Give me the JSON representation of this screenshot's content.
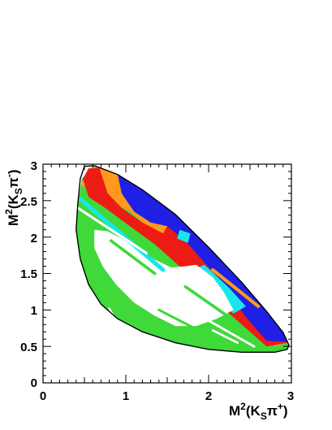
{
  "chart_data": {
    "type": "heatmap",
    "title": "",
    "xlabel": {
      "base": "M",
      "sup1": "2",
      "open": "(K",
      "sub": "S",
      "pi": "π",
      "sup2": "+",
      "close": ")"
    },
    "ylabel": {
      "base": "M",
      "sup1": "2",
      "open": "(K",
      "sub": "S",
      "pi": "π",
      "sup2": "-",
      "close": ")"
    },
    "xlim": [
      0,
      3
    ],
    "ylim": [
      0,
      3
    ],
    "x_ticks": [
      "0",
      "1",
      "2",
      "3"
    ],
    "y_ticks": [
      "0",
      "0.5",
      "1",
      "1.5",
      "2",
      "2.5",
      "3"
    ],
    "grid": false,
    "colors": {
      "blue": "#1f1fe6",
      "cyan": "#19e6ea",
      "green": "#3fd93a",
      "yellow": "#f2f21c",
      "orange": "#ff9a1c",
      "red": "#ee1a14",
      "white": "#ffffff",
      "boundary": "#000000"
    },
    "dalitz_boundary": [
      [
        0.4,
        2.1
      ],
      [
        0.42,
        2.45
      ],
      [
        0.45,
        2.8
      ],
      [
        0.5,
        2.97
      ],
      [
        0.62,
        2.98
      ],
      [
        0.9,
        2.86
      ],
      [
        1.2,
        2.65
      ],
      [
        1.6,
        2.31
      ],
      [
        2.0,
        1.86
      ],
      [
        2.4,
        1.38
      ],
      [
        2.7,
        0.98
      ],
      [
        2.9,
        0.69
      ],
      [
        2.97,
        0.52
      ],
      [
        2.95,
        0.46
      ],
      [
        2.8,
        0.42
      ],
      [
        2.4,
        0.42
      ],
      [
        2.0,
        0.46
      ],
      [
        1.6,
        0.55
      ],
      [
        1.2,
        0.7
      ],
      [
        0.9,
        0.88
      ],
      [
        0.7,
        1.08
      ],
      [
        0.55,
        1.35
      ],
      [
        0.45,
        1.7
      ],
      [
        0.4,
        2.1
      ]
    ],
    "regions": [
      {
        "color": "green",
        "points": [
          [
            0.4,
            2.1
          ],
          [
            0.42,
            2.45
          ],
          [
            0.47,
            2.8
          ],
          [
            0.6,
            2.97
          ],
          [
            0.8,
            2.93
          ],
          [
            1.05,
            2.78
          ],
          [
            1.3,
            2.62
          ],
          [
            1.6,
            2.31
          ],
          [
            2.0,
            1.86
          ],
          [
            2.4,
            1.38
          ],
          [
            2.7,
            0.98
          ],
          [
            2.9,
            0.69
          ],
          [
            2.97,
            0.52
          ],
          [
            2.95,
            0.46
          ],
          [
            2.8,
            0.42
          ],
          [
            2.4,
            0.42
          ],
          [
            2.0,
            0.46
          ],
          [
            1.6,
            0.55
          ],
          [
            1.2,
            0.7
          ],
          [
            0.9,
            0.88
          ],
          [
            0.7,
            1.08
          ],
          [
            0.55,
            1.35
          ],
          [
            0.45,
            1.7
          ]
        ]
      },
      {
        "color": "yellow",
        "points": [
          [
            0.9,
            2.8
          ],
          [
            1.3,
            2.6
          ],
          [
            1.7,
            2.2
          ],
          [
            2.1,
            1.75
          ],
          [
            2.5,
            1.25
          ],
          [
            2.85,
            0.78
          ],
          [
            2.7,
            0.62
          ],
          [
            2.4,
            0.9
          ],
          [
            2.0,
            1.35
          ],
          [
            1.6,
            1.85
          ],
          [
            1.2,
            2.25
          ],
          [
            0.8,
            2.55
          ]
        ]
      },
      {
        "color": "orange",
        "points": [
          [
            0.46,
            2.72
          ],
          [
            0.55,
            2.95
          ],
          [
            0.75,
            2.95
          ],
          [
            1.0,
            2.8
          ],
          [
            1.35,
            2.55
          ],
          [
            1.7,
            2.18
          ],
          [
            2.15,
            1.68
          ],
          [
            2.55,
            1.18
          ],
          [
            2.88,
            0.72
          ],
          [
            2.95,
            0.55
          ],
          [
            2.8,
            0.5
          ],
          [
            2.5,
            0.75
          ],
          [
            2.15,
            1.1
          ],
          [
            1.8,
            1.5
          ],
          [
            1.45,
            1.95
          ],
          [
            1.05,
            2.35
          ],
          [
            0.7,
            2.55
          ]
        ]
      },
      {
        "color": "red",
        "points": [
          [
            0.48,
            2.8
          ],
          [
            0.55,
            2.94
          ],
          [
            0.68,
            2.95
          ],
          [
            0.78,
            2.6
          ],
          [
            0.95,
            2.4
          ],
          [
            1.2,
            2.2
          ],
          [
            1.45,
            2.05
          ],
          [
            1.55,
            2.25
          ],
          [
            1.7,
            2.18
          ],
          [
            2.05,
            1.8
          ],
          [
            2.4,
            1.4
          ],
          [
            2.75,
            0.9
          ],
          [
            2.9,
            0.66
          ],
          [
            2.95,
            0.55
          ],
          [
            2.7,
            0.5
          ],
          [
            2.4,
            0.8
          ],
          [
            2.05,
            1.15
          ],
          [
            1.7,
            1.55
          ],
          [
            1.35,
            1.9
          ],
          [
            1.05,
            2.15
          ],
          [
            0.75,
            2.4
          ],
          [
            0.55,
            2.55
          ]
        ]
      },
      {
        "color": "blue",
        "points": [
          [
            0.9,
            2.87
          ],
          [
            1.2,
            2.66
          ],
          [
            1.6,
            2.31
          ],
          [
            2.0,
            1.86
          ],
          [
            2.4,
            1.38
          ],
          [
            2.7,
            0.98
          ],
          [
            2.9,
            0.69
          ],
          [
            2.96,
            0.56
          ],
          [
            2.7,
            0.58
          ],
          [
            2.45,
            0.9
          ],
          [
            2.3,
            1.15
          ],
          [
            2.15,
            1.4
          ],
          [
            1.95,
            1.65
          ],
          [
            1.72,
            1.95
          ],
          [
            1.5,
            2.15
          ],
          [
            1.3,
            2.2
          ],
          [
            1.1,
            2.35
          ],
          [
            0.95,
            2.6
          ]
        ]
      },
      {
        "color": "cyan",
        "points": [
          [
            1.95,
            1.62
          ],
          [
            2.25,
            1.3
          ],
          [
            2.45,
            1.05
          ],
          [
            2.3,
            0.95
          ],
          [
            2.1,
            1.15
          ],
          [
            1.9,
            1.4
          ],
          [
            1.8,
            1.55
          ]
        ]
      },
      {
        "color": "cyan",
        "points": [
          [
            1.65,
            2.1
          ],
          [
            1.78,
            2.05
          ],
          [
            1.75,
            1.92
          ],
          [
            1.62,
            1.98
          ]
        ]
      },
      {
        "color": "cyan",
        "points": [
          [
            0.72,
            1.95
          ],
          [
            0.8,
            1.75
          ],
          [
            0.92,
            1.55
          ],
          [
            1.08,
            1.42
          ],
          [
            1.22,
            1.4
          ],
          [
            1.25,
            1.55
          ],
          [
            1.18,
            1.75
          ],
          [
            1.05,
            1.92
          ],
          [
            0.88,
            2.02
          ],
          [
            0.76,
            2.05
          ]
        ]
      },
      {
        "color": "cyan",
        "points": [
          [
            1.48,
            1.18
          ],
          [
            1.6,
            1.0
          ],
          [
            1.78,
            0.86
          ],
          [
            1.95,
            0.83
          ],
          [
            2.0,
            0.95
          ],
          [
            1.92,
            1.12
          ],
          [
            1.78,
            1.3
          ],
          [
            1.6,
            1.4
          ],
          [
            1.5,
            1.32
          ]
        ]
      },
      {
        "color": "white",
        "points": [
          [
            0.62,
            2.1
          ],
          [
            0.78,
            2.08
          ],
          [
            0.95,
            1.98
          ],
          [
            1.12,
            1.85
          ],
          [
            1.3,
            1.72
          ],
          [
            1.55,
            1.58
          ],
          [
            1.72,
            1.6
          ],
          [
            1.85,
            1.62
          ],
          [
            2.05,
            1.45
          ],
          [
            2.18,
            1.25
          ],
          [
            2.3,
            1.0
          ],
          [
            2.1,
            0.88
          ],
          [
            1.85,
            0.78
          ],
          [
            1.6,
            0.78
          ],
          [
            1.35,
            0.92
          ],
          [
            1.1,
            1.1
          ],
          [
            0.88,
            1.35
          ],
          [
            0.72,
            1.6
          ],
          [
            0.62,
            1.85
          ]
        ]
      }
    ],
    "stripes": [
      {
        "color": "cyan",
        "width": 0.05,
        "points": [
          [
            0.45,
            2.52
          ],
          [
            1.45,
            1.55
          ]
        ]
      },
      {
        "color": "green",
        "width": 0.035,
        "points": [
          [
            0.82,
            1.95
          ],
          [
            1.35,
            1.5
          ]
        ]
      },
      {
        "color": "green",
        "width": 0.035,
        "points": [
          [
            1.72,
            1.32
          ],
          [
            2.35,
            0.82
          ]
        ]
      },
      {
        "color": "white",
        "width": 0.03,
        "points": [
          [
            0.42,
            2.4
          ],
          [
            1.25,
            1.78
          ]
        ]
      },
      {
        "color": "green",
        "width": 0.03,
        "points": [
          [
            1.4,
            1.0
          ],
          [
            2.05,
            0.62
          ]
        ]
      },
      {
        "color": "white",
        "width": 0.025,
        "points": [
          [
            0.8,
            1.02
          ],
          [
            0.95,
            0.72
          ]
        ]
      },
      {
        "color": "white",
        "width": 0.025,
        "points": [
          [
            2.05,
            0.72
          ],
          [
            2.35,
            0.55
          ]
        ]
      },
      {
        "color": "white",
        "width": 0.028,
        "points": [
          [
            1.85,
            0.95
          ],
          [
            2.55,
            0.5
          ]
        ]
      },
      {
        "color": "orange",
        "width": 0.04,
        "points": [
          [
            2.05,
            1.55
          ],
          [
            2.6,
            1.05
          ]
        ]
      }
    ]
  }
}
